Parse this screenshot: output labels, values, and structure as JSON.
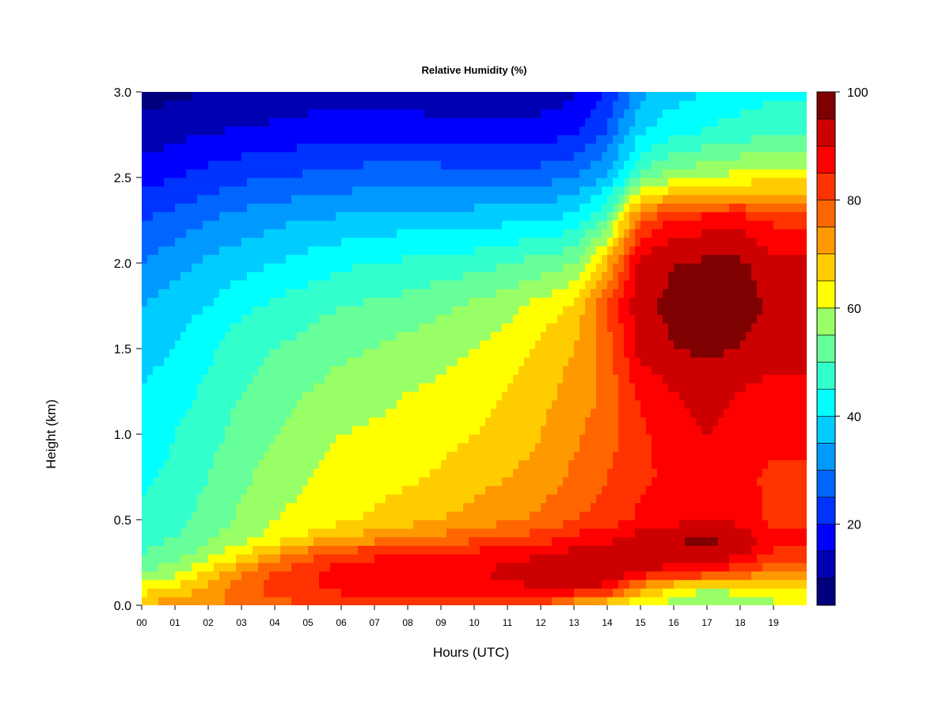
{
  "chart_data": {
    "type": "heatmap",
    "title": "Relative Humidity (%)",
    "xlabel": "Hours (UTC)",
    "ylabel": "Height (km)",
    "xlim": [
      0,
      20
    ],
    "ylim": [
      0.0,
      3.0
    ],
    "x_ticks": [
      "00",
      "01",
      "02",
      "03",
      "04",
      "05",
      "06",
      "07",
      "08",
      "09",
      "10",
      "11",
      "12",
      "13",
      "14",
      "15",
      "16",
      "17",
      "18",
      "19"
    ],
    "y_ticks": [
      "0.0",
      "0.5",
      "1.0",
      "1.5",
      "2.0",
      "2.5",
      "3.0"
    ],
    "colorbar": {
      "min": 5,
      "max": 100,
      "levels": [
        5,
        10,
        15,
        20,
        25,
        30,
        35,
        40,
        45,
        50,
        55,
        60,
        65,
        70,
        75,
        80,
        85,
        90,
        95,
        100
      ],
      "tick_labels": [
        "20",
        "40",
        "60",
        "80",
        "100"
      ],
      "colors": [
        "#00007f",
        "#0000b3",
        "#0000ff",
        "#0033ff",
        "#0066ff",
        "#0099ff",
        "#00ccff",
        "#00ffff",
        "#33ffcc",
        "#66ff99",
        "#99ff66",
        "#ffff00",
        "#ffcc00",
        "#ff9900",
        "#ff6600",
        "#ff3300",
        "#ff0000",
        "#cc0000",
        "#7f0000"
      ]
    },
    "height_levels_km": [
      0.0,
      0.1,
      0.2,
      0.3,
      0.4,
      0.5,
      0.75,
      1.0,
      1.25,
      1.5,
      1.75,
      2.0,
      2.25,
      2.5,
      2.75,
      3.0
    ],
    "hours": [
      0,
      1,
      2,
      3,
      4,
      5,
      6,
      7,
      8,
      9,
      10,
      11,
      12,
      13,
      14,
      15,
      16,
      17,
      18,
      19
    ],
    "rh_columns": [
      [
        72,
        62,
        55,
        50,
        48,
        46,
        44,
        42,
        40,
        38,
        35,
        30,
        25,
        18,
        12,
        8
      ],
      [
        72,
        66,
        58,
        52,
        50,
        48,
        46,
        45,
        43,
        40,
        38,
        33,
        27,
        20,
        14,
        9
      ],
      [
        74,
        72,
        66,
        58,
        54,
        52,
        50,
        48,
        46,
        44,
        40,
        36,
        30,
        22,
        15,
        10
      ],
      [
        76,
        78,
        74,
        64,
        58,
        56,
        54,
        52,
        50,
        48,
        44,
        38,
        32,
        24,
        16,
        10
      ],
      [
        78,
        82,
        80,
        72,
        62,
        60,
        57,
        55,
        52,
        50,
        46,
        40,
        34,
        25,
        17,
        11
      ],
      [
        80,
        84,
        84,
        78,
        66,
        62,
        60,
        58,
        55,
        52,
        48,
        42,
        35,
        26,
        18,
        12
      ],
      [
        82,
        86,
        88,
        82,
        70,
        64,
        62,
        60,
        57,
        54,
        50,
        44,
        36,
        27,
        18,
        12
      ],
      [
        82,
        87,
        88,
        84,
        72,
        66,
        63,
        61,
        58,
        55,
        51,
        45,
        37,
        28,
        19,
        12
      ],
      [
        82,
        88,
        90,
        86,
        74,
        68,
        64,
        62,
        60,
        57,
        52,
        46,
        38,
        28,
        19,
        12
      ],
      [
        82,
        88,
        90,
        86,
        76,
        70,
        66,
        63,
        61,
        58,
        54,
        47,
        38,
        28,
        18,
        11
      ],
      [
        82,
        88,
        90,
        87,
        78,
        72,
        68,
        65,
        63,
        60,
        56,
        48,
        38,
        28,
        18,
        11
      ],
      [
        82,
        89,
        91,
        88,
        80,
        74,
        70,
        67,
        65,
        63,
        58,
        50,
        39,
        28,
        18,
        11
      ],
      [
        80,
        90,
        92,
        90,
        82,
        76,
        72,
        70,
        68,
        66,
        62,
        52,
        40,
        28,
        18,
        12
      ],
      [
        70,
        90,
        94,
        92,
        86,
        80,
        76,
        74,
        72,
        70,
        66,
        55,
        42,
        30,
        20,
        14
      ],
      [
        64,
        88,
        95,
        94,
        88,
        82,
        80,
        78,
        76,
        78,
        80,
        70,
        52,
        36,
        26,
        20
      ],
      [
        60,
        72,
        90,
        93,
        92,
        86,
        84,
        84,
        86,
        92,
        94,
        92,
        80,
        52,
        40,
        34
      ],
      [
        58,
        64,
        88,
        94,
        95,
        88,
        86,
        88,
        90,
        95,
        96,
        95,
        86,
        58,
        44,
        38
      ],
      [
        56,
        60,
        86,
        94,
        96,
        90,
        87,
        90,
        92,
        96,
        97,
        96,
        88,
        60,
        46,
        40
      ],
      [
        56,
        62,
        80,
        92,
        94,
        88,
        86,
        88,
        90,
        95,
        97,
        96,
        88,
        62,
        48,
        42
      ],
      [
        58,
        66,
        76,
        84,
        86,
        84,
        84,
        86,
        88,
        92,
        94,
        92,
        84,
        64,
        50,
        44
      ]
    ]
  }
}
